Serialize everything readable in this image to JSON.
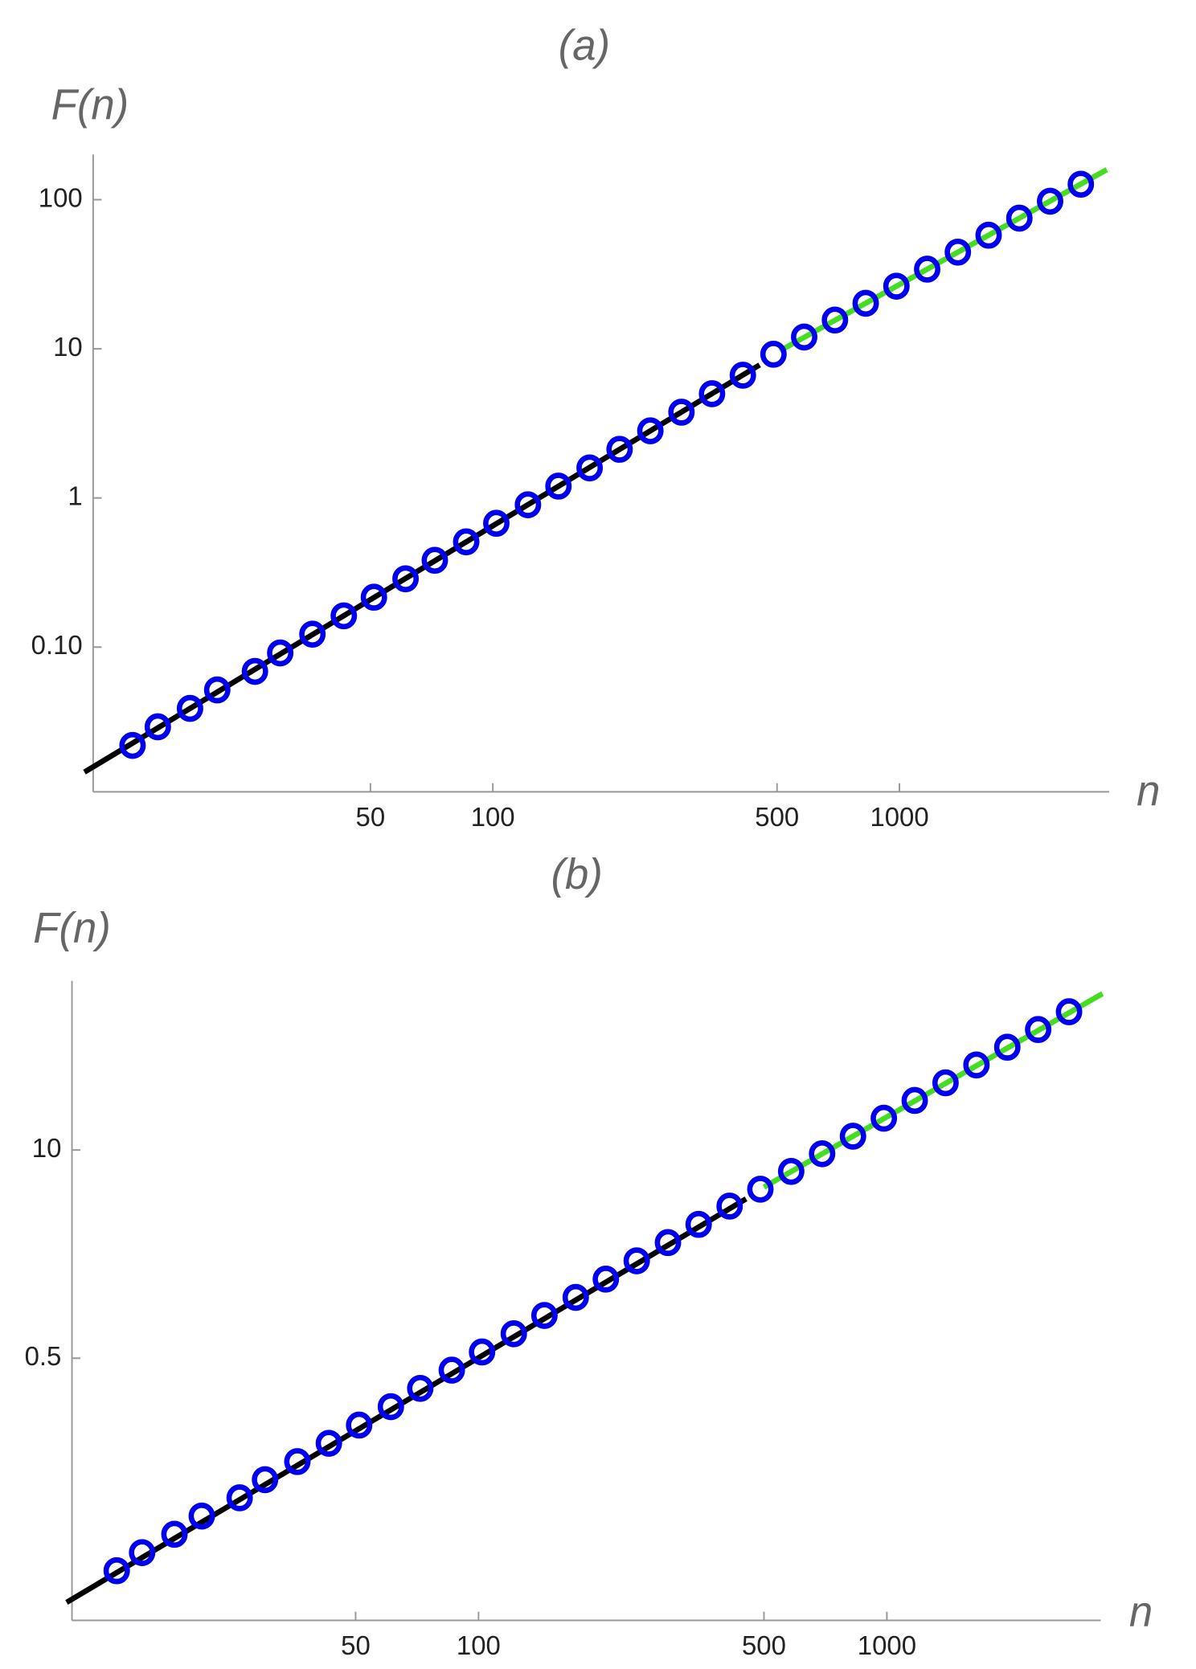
{
  "chart_data": [
    {
      "type": "scatter",
      "title": "(a)",
      "ylabel": "F(n)",
      "xlabel": "n",
      "xlog": true,
      "ylog": true,
      "xlim": [
        10.4,
        3280
      ],
      "ylim": [
        0.0107,
        201
      ],
      "xticks": [
        50,
        100,
        500,
        1000
      ],
      "yticks": [
        {
          "value": 0.1,
          "label": "0.10"
        },
        1,
        10,
        100
      ],
      "x": [
        13,
        15,
        18,
        21,
        26,
        30,
        36,
        43,
        51,
        61,
        72,
        86,
        102,
        122,
        145,
        173,
        205,
        244,
        291,
        346,
        412,
        490,
        583,
        694,
        826,
        983,
        1170,
        1392,
        1657,
        1972,
        2347,
        2793
      ],
      "color": "#0000ee",
      "values": [
        0.0219,
        0.0292,
        0.0388,
        0.0516,
        0.0687,
        0.0914,
        0.122,
        0.162,
        0.216,
        0.287,
        0.382,
        0.508,
        0.676,
        0.9,
        1.2,
        1.59,
        2.12,
        2.82,
        3.76,
        5.0,
        6.65,
        9.2,
        12.0,
        15.6,
        20.2,
        26.3,
        34.2,
        44.5,
        57.8,
        75.2,
        97.7,
        127
      ],
      "lines": [
        {
          "color": "#000000",
          "x": [
            9.9,
            453
          ],
          "values": [
            0.0145,
            7.8
          ]
        },
        {
          "color": "#44dd22",
          "x": [
            508,
            3236
          ],
          "values": [
            9.7,
            159
          ]
        }
      ]
    },
    {
      "type": "scatter",
      "title": "(b)",
      "ylabel": "F(n)",
      "xlabel": "n",
      "xlog": true,
      "ylog": true,
      "xlim": [
        10.1,
        3340
      ],
      "ylim": [
        0.0115,
        114
      ],
      "xticks": [
        50,
        100,
        500,
        1000
      ],
      "yticks": [
        0.5,
        10
      ],
      "x": [
        13,
        15,
        18,
        21,
        26,
        30,
        36,
        43,
        51,
        61,
        72,
        86,
        102,
        122,
        145,
        173,
        205,
        244,
        291,
        346,
        412,
        490,
        583,
        694,
        826,
        983,
        1170,
        1392,
        1657,
        1972,
        2347,
        2793
      ],
      "color": "#0000ee",
      "values": [
        0.0235,
        0.0305,
        0.0397,
        0.0516,
        0.0671,
        0.0871,
        0.113,
        0.147,
        0.191,
        0.249,
        0.324,
        0.421,
        0.547,
        0.711,
        0.925,
        1.2,
        1.56,
        2.03,
        2.64,
        3.43,
        4.46,
        5.69,
        7.35,
        9.48,
        12.2,
        15.8,
        20.4,
        26.3,
        34.0,
        43.9,
        56.6,
        73.1
      ],
      "lines": [
        {
          "color": "#000000",
          "x": [
            9.8,
            452
          ],
          "values": [
            0.0149,
            4.95
          ]
        },
        {
          "color": "#44dd22",
          "x": [
            500,
            3373
          ],
          "values": [
            5.86,
            94.8
          ]
        }
      ]
    }
  ]
}
